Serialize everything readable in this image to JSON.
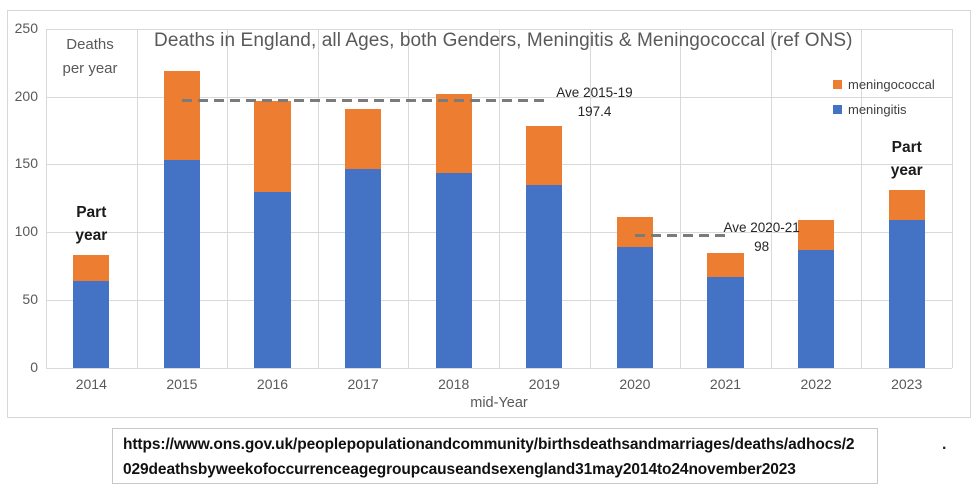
{
  "chart_data": {
    "type": "bar",
    "stacked": true,
    "title": "Deaths in England, all Ages, both Genders, Meningitis & Meningococcal (ref ONS)",
    "xlabel": "mid-Year",
    "ylabel_lines": [
      "Deaths",
      "per year"
    ],
    "categories": [
      "2014",
      "2015",
      "2016",
      "2017",
      "2018",
      "2019",
      "2020",
      "2021",
      "2022",
      "2023"
    ],
    "series": [
      {
        "name": "meningitis",
        "color": "#4472C4",
        "values": [
          64,
          153,
          130,
          147,
          144,
          135,
          89,
          67,
          87,
          109
        ]
      },
      {
        "name": "meningococcal",
        "color": "#ED7D31",
        "values": [
          19,
          66,
          67,
          44,
          58,
          43,
          22,
          18,
          22,
          22
        ]
      }
    ],
    "totals": [
      83,
      219,
      197,
      191,
      202,
      178,
      111,
      85,
      109,
      131
    ],
    "ylim": [
      0,
      250
    ],
    "y_ticks": [
      250,
      200,
      150,
      100,
      50,
      0
    ],
    "grid": true,
    "legend_position": "top-right",
    "legend_items": [
      {
        "label": "meningococcal",
        "color": "#ED7D31"
      },
      {
        "label": "meningitis",
        "color": "#4472C4"
      }
    ],
    "average_lines": [
      {
        "label": "Ave 2015-19",
        "value": 197.4,
        "value_label": "197.4",
        "from_year": "2015",
        "to_year": "2019",
        "label_dx": 12
      },
      {
        "label": "Ave 2020-21",
        "value": 98,
        "value_label": "98",
        "from_year": "2020",
        "to_year": "2021",
        "label_dx": -2
      }
    ],
    "part_year_notes": [
      {
        "lines": [
          "Part",
          "year"
        ],
        "year": "2014"
      },
      {
        "lines": [
          "Part",
          "year"
        ],
        "year": "2023"
      }
    ]
  },
  "source_box": {
    "lines": [
      "https://www.ons.gov.uk/peoplepopulationandcommunity/birthsdeathsandmarriages/deaths/adhocs/2",
      "029deathsbyweekofoccurrenceagegroupcauseandsexengland31may2014to24november2023"
    ],
    "url": "https://www.ons.gov.uk/peoplepopulationandcommunity/birthsdeathsandmarriages/deaths/adhocs/2029deathsbyweekofoccurrenceagegroupcauseandsexengland31may2014to24november2023"
  },
  "trailing_period": "."
}
